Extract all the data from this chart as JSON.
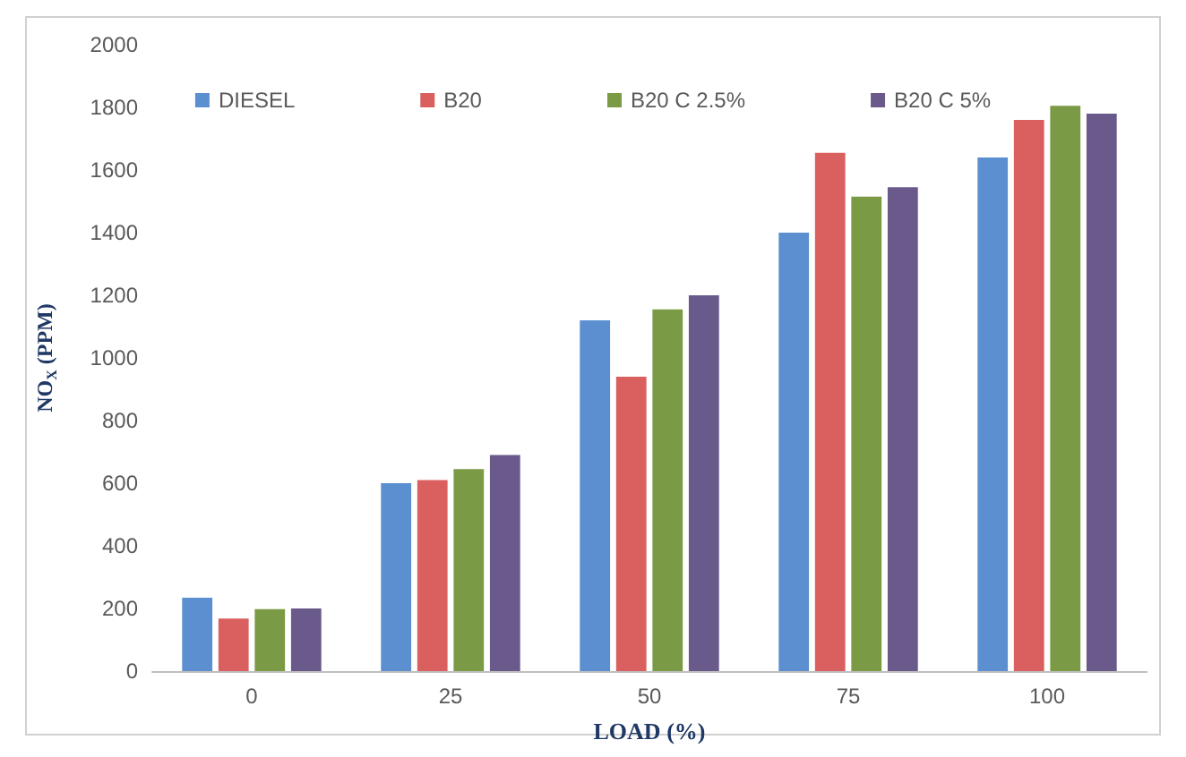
{
  "chart_data": {
    "type": "bar",
    "xlabel": "LOAD (%)",
    "ylabel": "NO$_{X}$ (PPM)",
    "categories": [
      "0",
      "25",
      "50",
      "75",
      "100"
    ],
    "series": [
      {
        "name": "DIESEL",
        "color": "#5b8fd0",
        "values": [
          234,
          600,
          1120,
          1400,
          1640
        ]
      },
      {
        "name": "B20",
        "color": "#d9605f",
        "values": [
          168,
          610,
          940,
          1655,
          1760
        ]
      },
      {
        "name": "B20 C 2.5%",
        "color": "#7a9a45",
        "values": [
          198,
          645,
          1155,
          1515,
          1805
        ]
      },
      {
        "name": "B20 C 5%",
        "color": "#6a5a8c",
        "values": [
          200,
          690,
          1200,
          1545,
          1780
        ]
      }
    ],
    "ylim": [
      0,
      2000
    ],
    "yticks": [
      0,
      200,
      400,
      600,
      800,
      1000,
      1200,
      1400,
      1600,
      1800,
      2000
    ],
    "grid": false,
    "legend": "top"
  }
}
